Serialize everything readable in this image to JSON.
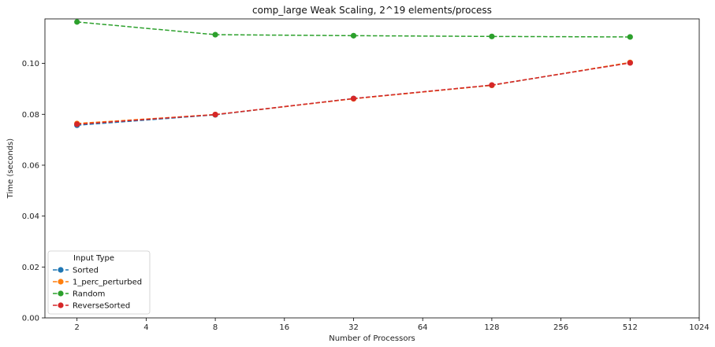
{
  "chart_data": {
    "type": "line",
    "title": "comp_large Weak Scaling, 2^19 elements/process",
    "xlabel": "Number of Processors",
    "ylabel": "Time (seconds)",
    "x_scale": "log2",
    "x": [
      2,
      8,
      32,
      128,
      512
    ],
    "xlim": [
      1.45,
      1024
    ],
    "xticks": [
      2,
      4,
      8,
      16,
      32,
      64,
      128,
      256,
      512,
      1024
    ],
    "ylim": [
      0,
      0.1175
    ],
    "yticks": [
      0.0,
      0.02,
      0.04,
      0.06,
      0.08,
      0.1
    ],
    "ytick_labels": [
      "0.00",
      "0.02",
      "0.04",
      "0.06",
      "0.08",
      "0.10"
    ],
    "grid": false,
    "line_style": "dashed",
    "markers": "circle",
    "legend": {
      "title": "Input Type",
      "placement": "lower-left"
    },
    "series": [
      {
        "name": "Sorted",
        "color": "#1f77b4",
        "values": [
          0.0757,
          0.0798,
          0.0862,
          0.0914,
          0.1003
        ]
      },
      {
        "name": "1_perc_perturbed",
        "color": "#ff7f0e",
        "values": [
          0.0764,
          0.0799,
          0.0861,
          0.0914,
          0.1004
        ]
      },
      {
        "name": "Random",
        "color": "#2ca02c",
        "values": [
          0.1163,
          0.1113,
          0.1109,
          0.1106,
          0.1104
        ]
      },
      {
        "name": "ReverseSorted",
        "color": "#d62728",
        "values": [
          0.0761,
          0.0799,
          0.0862,
          0.0915,
          0.1002
        ]
      }
    ]
  }
}
